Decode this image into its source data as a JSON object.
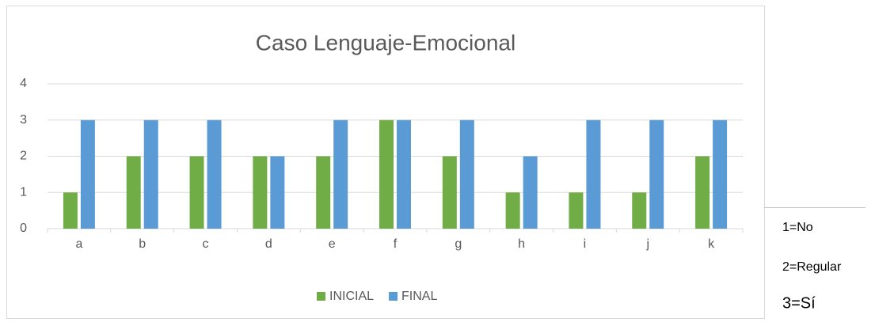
{
  "chart_data": {
    "type": "bar",
    "title": "Caso Lenguaje-Emocional",
    "categories": [
      "a",
      "b",
      "c",
      "d",
      "e",
      "f",
      "g",
      "h",
      "i",
      "j",
      "k"
    ],
    "series": [
      {
        "name": "INICIAL",
        "color": "#70ad47",
        "values": [
          1,
          2,
          2,
          2,
          2,
          3,
          2,
          1,
          1,
          1,
          2
        ]
      },
      {
        "name": "FINAL",
        "color": "#5b9bd5",
        "values": [
          3,
          3,
          3,
          2,
          3,
          3,
          3,
          2,
          3,
          3,
          3
        ]
      }
    ],
    "ylim": [
      0,
      4
    ],
    "yticks": [
      0,
      1,
      2,
      3,
      4
    ],
    "grid": true,
    "legend": "bottom"
  },
  "notes": [
    "1=No",
    "2=Regular",
    "3=Sí"
  ]
}
